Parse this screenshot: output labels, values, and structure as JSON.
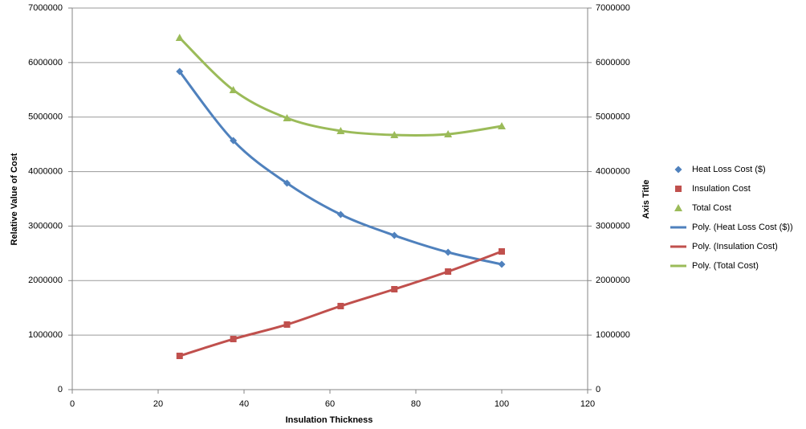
{
  "chart_data": {
    "type": "scatter",
    "x_title": "Insulation Thickness",
    "y_title": "Relative Value of Cost",
    "y2_title": "Axis Title",
    "x": [
      25,
      37.5,
      50,
      62.5,
      75,
      87.5,
      100
    ],
    "series": [
      {
        "name": "Heat Loss Cost ($)",
        "trendline_name": "Poly. (Heat Loss Cost ($))",
        "color": "#4f81bd",
        "marker": "diamond",
        "values": [
          5835000,
          4568000,
          3787000,
          3213000,
          2829000,
          2520000,
          2299000
        ]
      },
      {
        "name": "Insulation Cost",
        "trendline_name": "Poly. (Insulation Cost)",
        "color": "#c0504d",
        "marker": "square",
        "values": [
          619000,
          928000,
          1194000,
          1533000,
          1842000,
          2166000,
          2535000
        ]
      },
      {
        "name": "Total Cost",
        "trendline_name": "Poly. (Total Cost)",
        "color": "#9bbb59",
        "marker": "triangle",
        "values": [
          6454000,
          5496000,
          4981000,
          4746000,
          4671000,
          4686000,
          4834000
        ]
      }
    ],
    "xlim": [
      0,
      120
    ],
    "xticks": [
      0,
      20,
      40,
      60,
      80,
      100,
      120
    ],
    "ylim": [
      0,
      7000000
    ],
    "yticks": [
      0,
      1000000,
      2000000,
      3000000,
      4000000,
      5000000,
      6000000,
      7000000
    ],
    "y2lim": [
      0,
      7000000
    ],
    "y2ticks": [
      0,
      1000000,
      2000000,
      3000000,
      4000000,
      5000000,
      6000000,
      7000000
    ],
    "grid": true,
    "legend": "right"
  }
}
